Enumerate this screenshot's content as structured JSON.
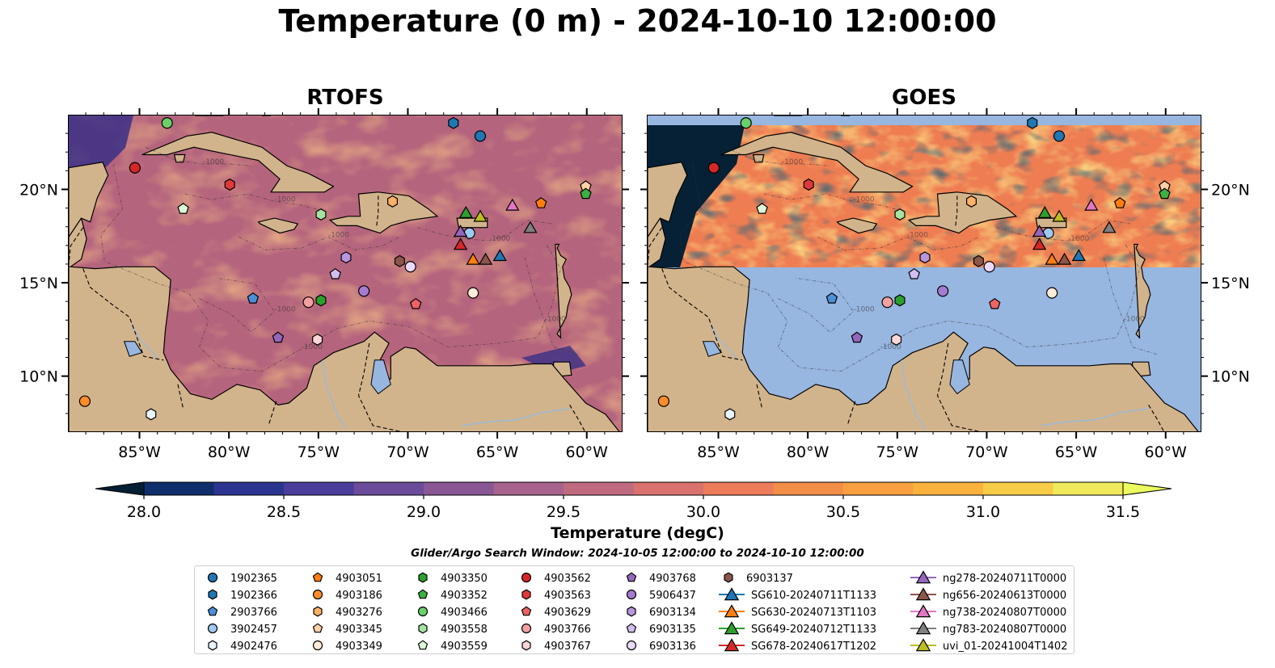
{
  "title": "Temperature (0 m) - 2024-10-10 12:00:00",
  "panels": [
    {
      "title": "RTOFS",
      "coverage": "full"
    },
    {
      "title": "GOES",
      "coverage": "north_of_16N"
    }
  ],
  "map": {
    "lon_range": [
      -89,
      -58
    ],
    "lat_range": [
      7,
      24
    ],
    "lon_ticks": [
      "85°W",
      "80°W",
      "75°W",
      "70°W",
      "65°W",
      "60°W"
    ],
    "lat_ticks": [
      "20°N",
      "15°N",
      "10°N"
    ],
    "land_color": "#d2b48c",
    "nodata_color": "#97b6e0",
    "contour_label": "-1000"
  },
  "colorbar": {
    "label": "Temperature (degC)",
    "min": 28.0,
    "max": 31.5,
    "ticks": [
      "28.0",
      "28.5",
      "29.0",
      "29.5",
      "30.0",
      "30.5",
      "31.0",
      "31.5"
    ],
    "colors": [
      "#041e33",
      "#0f2e6b",
      "#2b3591",
      "#4a3d9c",
      "#6a4c9b",
      "#8a5795",
      "#a7628d",
      "#c06a7f",
      "#d9716e",
      "#ed7c5b",
      "#f38e49",
      "#f8a03f",
      "#fbb23d",
      "#f7cc46",
      "#eeea5c",
      "#eafa5f"
    ]
  },
  "search_window": "Glider/Argo Search Window: 2024-10-05 12:00:00 to 2024-10-10 12:00:00",
  "legend": [
    {
      "label": "1902365",
      "marker": "circle",
      "color": "#1f77b4"
    },
    {
      "label": "1902366",
      "marker": "hexagon",
      "color": "#1f77b4"
    },
    {
      "label": "2903766",
      "marker": "pentagon",
      "color": "#4a90d9"
    },
    {
      "label": "3902457",
      "marker": "circle",
      "color": "#9ec9f0"
    },
    {
      "label": "4902476",
      "marker": "hexagon",
      "color": "#e8f3fc"
    },
    {
      "label": "4903051",
      "marker": "pentagon",
      "color": "#ff7f0e"
    },
    {
      "label": "4903186",
      "marker": "circle",
      "color": "#ff8c2a"
    },
    {
      "label": "4903276",
      "marker": "hexagon",
      "color": "#ffb067"
    },
    {
      "label": "4903345",
      "marker": "pentagon",
      "color": "#ffd1a8"
    },
    {
      "label": "4903349",
      "marker": "circle",
      "color": "#ffecd8"
    },
    {
      "label": "4903350",
      "marker": "hexagon",
      "color": "#2ca02c"
    },
    {
      "label": "4903352",
      "marker": "pentagon",
      "color": "#3cb043"
    },
    {
      "label": "4903466",
      "marker": "circle",
      "color": "#6ad06a"
    },
    {
      "label": "4903558",
      "marker": "hexagon",
      "color": "#a6e3a1"
    },
    {
      "label": "4903559",
      "marker": "pentagon",
      "color": "#dcf7d7"
    },
    {
      "label": "4903562",
      "marker": "circle",
      "color": "#d62728"
    },
    {
      "label": "4903563",
      "marker": "hexagon",
      "color": "#e0393a"
    },
    {
      "label": "4903629",
      "marker": "pentagon",
      "color": "#ec6363"
    },
    {
      "label": "4903766",
      "marker": "circle",
      "color": "#f4a0a0"
    },
    {
      "label": "4903767",
      "marker": "hexagon",
      "color": "#fbd6d6"
    },
    {
      "label": "4903768",
      "marker": "pentagon",
      "color": "#9467bd"
    },
    {
      "label": "5906437",
      "marker": "circle",
      "color": "#a57cd0"
    },
    {
      "label": "6903134",
      "marker": "hexagon",
      "color": "#b796e0"
    },
    {
      "label": "6903135",
      "marker": "pentagon",
      "color": "#d2bff0"
    },
    {
      "label": "6903136",
      "marker": "circle",
      "color": "#ead9f8"
    },
    {
      "label": "6903137",
      "marker": "hexagon",
      "color": "#8c564b"
    },
    {
      "label": "SG610-20240711T1133",
      "marker": "triangle",
      "color": "#1f77b4"
    },
    {
      "label": "SG630-20240713T1103",
      "marker": "triangle",
      "color": "#ff7f0e"
    },
    {
      "label": "SG649-20240712T1133",
      "marker": "triangle",
      "color": "#2ca02c"
    },
    {
      "label": "SG678-20240617T1202",
      "marker": "triangle",
      "color": "#d62728"
    },
    {
      "label": "ng278-20240711T0000",
      "marker": "triangle",
      "color": "#9467bd"
    },
    {
      "label": "ng656-20240613T0000",
      "marker": "triangle",
      "color": "#8c564b"
    },
    {
      "label": "ng738-20240807T0000",
      "marker": "triangle",
      "color": "#e377c2"
    },
    {
      "label": "ng783-20240807T0000",
      "marker": "triangle",
      "color": "#7f7f7f"
    },
    {
      "label": "uvi_01-20241004T1402",
      "marker": "triangle",
      "color": "#bcbd22"
    }
  ],
  "stations": [
    {
      "id": "4903466",
      "lon": -83.5,
      "lat": 23.6
    },
    {
      "id": "1902366",
      "lon": -67.5,
      "lat": 23.6
    },
    {
      "id": "1902365",
      "lon": -66.0,
      "lat": 22.9
    },
    {
      "id": "4903562",
      "lon": -85.3,
      "lat": 21.2
    },
    {
      "id": "4903563",
      "lon": -80.0,
      "lat": 20.3
    },
    {
      "id": "4903559",
      "lon": -82.6,
      "lat": 19.0
    },
    {
      "id": "4903558",
      "lon": -74.9,
      "lat": 18.7
    },
    {
      "id": "4903276",
      "lon": -70.9,
      "lat": 19.4
    },
    {
      "id": "4903051",
      "lon": -62.6,
      "lat": 19.3
    },
    {
      "id": "4903345",
      "lon": -60.1,
      "lat": 20.2
    },
    {
      "id": "4903352",
      "lon": -60.1,
      "lat": 19.8
    },
    {
      "id": "3902457",
      "lon": -66.6,
      "lat": 17.7
    },
    {
      "id": "6903134",
      "lon": -73.5,
      "lat": 16.4
    },
    {
      "id": "6903137",
      "lon": -70.5,
      "lat": 16.2
    },
    {
      "id": "6903136",
      "lon": -69.9,
      "lat": 15.9
    },
    {
      "id": "6903135",
      "lon": -74.1,
      "lat": 15.5
    },
    {
      "id": "5906437",
      "lon": -72.5,
      "lat": 14.6
    },
    {
      "id": "2903766",
      "lon": -78.7,
      "lat": 14.2
    },
    {
      "id": "4903766",
      "lon": -75.6,
      "lat": 14.0
    },
    {
      "id": "4903350",
      "lon": -74.9,
      "lat": 14.1
    },
    {
      "id": "4903629",
      "lon": -69.6,
      "lat": 13.9
    },
    {
      "id": "4903349",
      "lon": -66.4,
      "lat": 14.5
    },
    {
      "id": "4903768",
      "lon": -77.3,
      "lat": 12.1
    },
    {
      "id": "4903767",
      "lon": -75.1,
      "lat": 12.0
    },
    {
      "id": "4903186",
      "lon": -88.1,
      "lat": 8.7
    },
    {
      "id": "4902476",
      "lon": -84.4,
      "lat": 8.0
    },
    {
      "id": "SG649-20240712T1133",
      "lon": -66.8,
      "lat": 18.8
    },
    {
      "id": "uvi_01-20241004T1402",
      "lon": -66.0,
      "lat": 18.6
    },
    {
      "id": "ng738-20240807T0000",
      "lon": -64.2,
      "lat": 19.2
    },
    {
      "id": "ng783-20240807T0000",
      "lon": -63.2,
      "lat": 18.0
    },
    {
      "id": "ng278-20240711T0000",
      "lon": -67.1,
      "lat": 17.8
    },
    {
      "id": "SG678-20240617T1202",
      "lon": -67.1,
      "lat": 17.1
    },
    {
      "id": "SG630-20240713T1103",
      "lon": -66.4,
      "lat": 16.3
    },
    {
      "id": "ng656-20240613T0000",
      "lon": -65.7,
      "lat": 16.3
    },
    {
      "id": "SG610-20240711T1133",
      "lon": -64.9,
      "lat": 16.5
    }
  ]
}
